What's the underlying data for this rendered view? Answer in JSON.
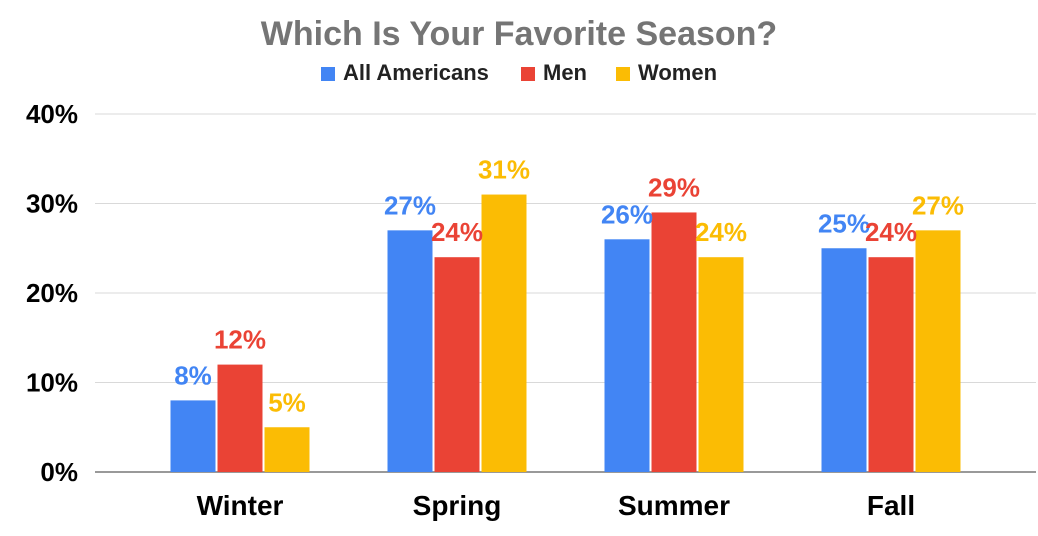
{
  "chart_data": {
    "type": "bar",
    "title": "Which Is Your Favorite Season?",
    "categories": [
      "Winter",
      "Spring",
      "Summer",
      "Fall"
    ],
    "series": [
      {
        "name": "All Americans",
        "color": "#4285F4",
        "values": [
          8,
          27,
          26,
          25
        ],
        "labels": [
          "8%",
          "27%",
          "26%",
          "25%"
        ]
      },
      {
        "name": "Men",
        "color": "#EA4335",
        "values": [
          12,
          24,
          29,
          24
        ],
        "labels": [
          "12%",
          "24%",
          "29%",
          "24%"
        ]
      },
      {
        "name": "Women",
        "color": "#FBBC04",
        "values": [
          5,
          31,
          24,
          27
        ],
        "labels": [
          "5%",
          "31%",
          "24%",
          "27%"
        ]
      }
    ],
    "xlabel": "",
    "ylabel": "",
    "ylim": [
      0,
      40
    ],
    "yticks": [
      0,
      10,
      20,
      30,
      40
    ],
    "ytick_labels": [
      "0%",
      "10%",
      "20%",
      "30%",
      "40%"
    ],
    "grid": true,
    "legend_position": "top"
  }
}
